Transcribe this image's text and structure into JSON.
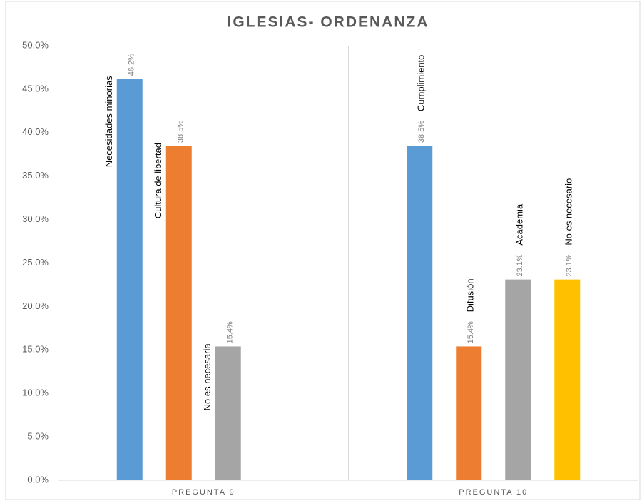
{
  "chart_data": {
    "type": "bar",
    "title": "IGLESIAS- ORDENANZA",
    "groups": [
      {
        "name": "PREGUNTA 9",
        "bars": [
          {
            "label": "Necesidades minorias",
            "value": 46.2,
            "value_label": "46.2%",
            "color": "#5b9bd5"
          },
          {
            "label": "Cultura de libertad",
            "value": 38.5,
            "value_label": "38.5%",
            "color": "#ed7d31"
          },
          {
            "label": "No es necesaria",
            "value": 15.4,
            "value_label": "15.4%",
            "color": "#a5a5a5"
          }
        ]
      },
      {
        "name": "PREGUNTA 10",
        "bars": [
          {
            "label": "Cumplimiento",
            "value": 38.5,
            "value_label": "38.5%",
            "color": "#5b9bd5"
          },
          {
            "label": "Difusión",
            "value": 15.4,
            "value_label": "15.4%",
            "color": "#ed7d31"
          },
          {
            "label": "Academia",
            "value": 23.1,
            "value_label": "23.1%",
            "color": "#a5a5a5"
          },
          {
            "label": "No es necesario",
            "value": 23.1,
            "value_label": "23.1%",
            "color": "#ffc000"
          }
        ]
      }
    ],
    "ylim": [
      0,
      50
    ],
    "yticks": [
      {
        "value": 0,
        "label": "0.0%"
      },
      {
        "value": 5,
        "label": "5.0%"
      },
      {
        "value": 10,
        "label": "10.0%"
      },
      {
        "value": 15,
        "label": "15.0%"
      },
      {
        "value": 20,
        "label": "20.0%"
      },
      {
        "value": 25,
        "label": "25.0%"
      },
      {
        "value": 30,
        "label": "30.0%"
      },
      {
        "value": 35,
        "label": "35.0%"
      },
      {
        "value": 40,
        "label": "40.0%"
      },
      {
        "value": 45,
        "label": "45.0%"
      },
      {
        "value": 50,
        "label": "50.0%"
      }
    ],
    "grid": false
  }
}
